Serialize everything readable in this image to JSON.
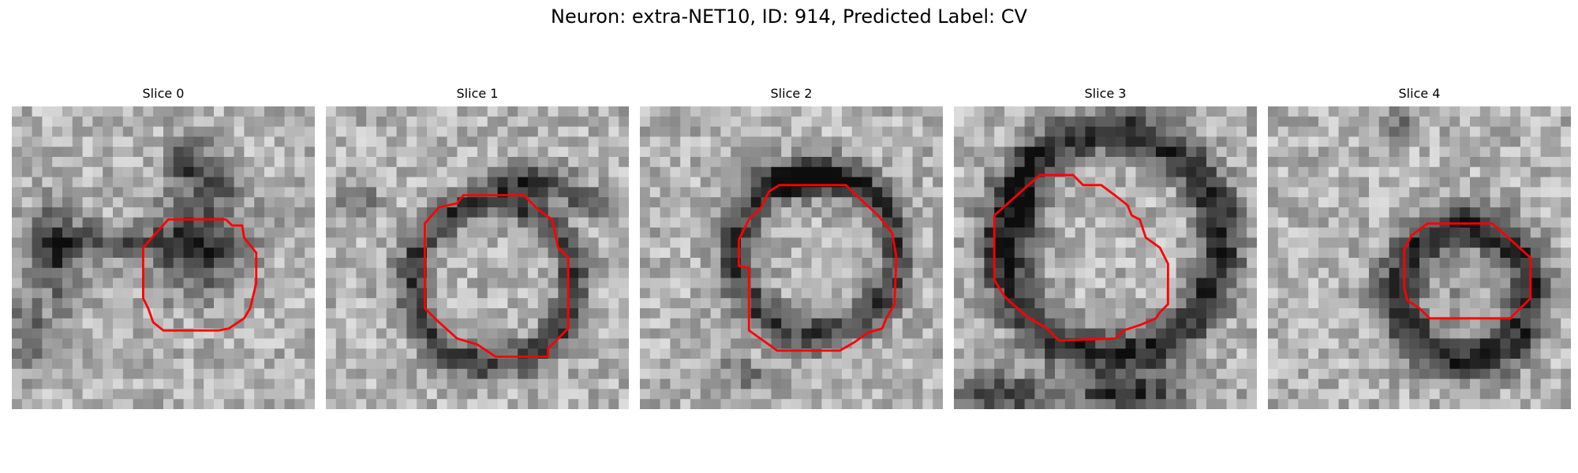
{
  "figure": {
    "title": "Neuron: extra-NET10, ID: 914, Predicted Label: CV"
  },
  "panels": [
    {
      "title": "Slice 0"
    },
    {
      "title": "Slice 1"
    },
    {
      "title": "Slice 2"
    },
    {
      "title": "Slice 3"
    },
    {
      "title": "Slice 4"
    }
  ],
  "style": {
    "contour_color": "#ff0000",
    "colormap": "grayscale"
  }
}
